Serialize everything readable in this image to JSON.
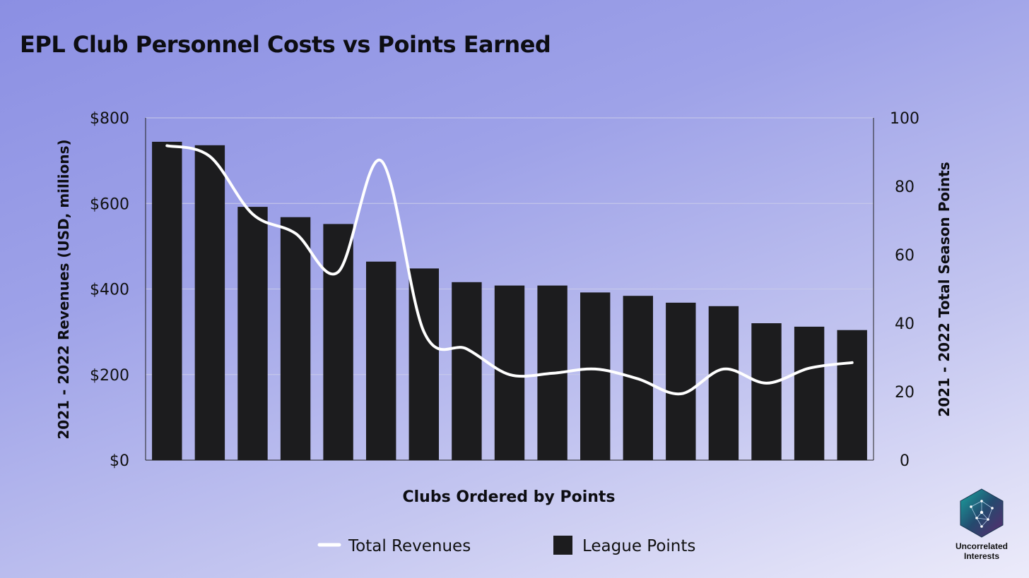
{
  "title": "EPL Club Personnel Costs vs Points Earned",
  "chart_data": {
    "type": "bar",
    "title": "EPL Club Personnel Costs vs Points Earned",
    "xlabel": "Clubs Ordered by Points",
    "ylabel_left": "2021 - 2022 Revenues (USD, millions)",
    "ylabel_right": "2021 - 2022 Total Season Points",
    "ylim_left": [
      0,
      800
    ],
    "ylim_right": [
      0,
      100
    ],
    "yticks_left": [
      "$0",
      "$200",
      "$400",
      "$600",
      "$800"
    ],
    "yticks_right": [
      "0",
      "20",
      "40",
      "60",
      "80",
      "100"
    ],
    "grid": true,
    "legend_position": "bottom",
    "series": [
      {
        "name": "Total Revenues",
        "type": "line",
        "axis": "left",
        "color": "#ffffff",
        "values": [
          735,
          710,
          575,
          530,
          440,
          700,
          300,
          260,
          200,
          203,
          213,
          190,
          155,
          213,
          180,
          215,
          228
        ]
      },
      {
        "name": "League Points",
        "type": "bar",
        "axis": "right",
        "color": "#1c1c1e",
        "values": [
          93,
          92,
          74,
          71,
          69,
          58,
          56,
          52,
          51,
          51,
          49,
          48,
          46,
          45,
          40,
          39,
          38
        ]
      }
    ]
  },
  "branding": {
    "name": "Uncorrelated Interests",
    "line1": "Uncorrelated",
    "line2": "Interests",
    "icon": "network-hexagon-icon"
  }
}
